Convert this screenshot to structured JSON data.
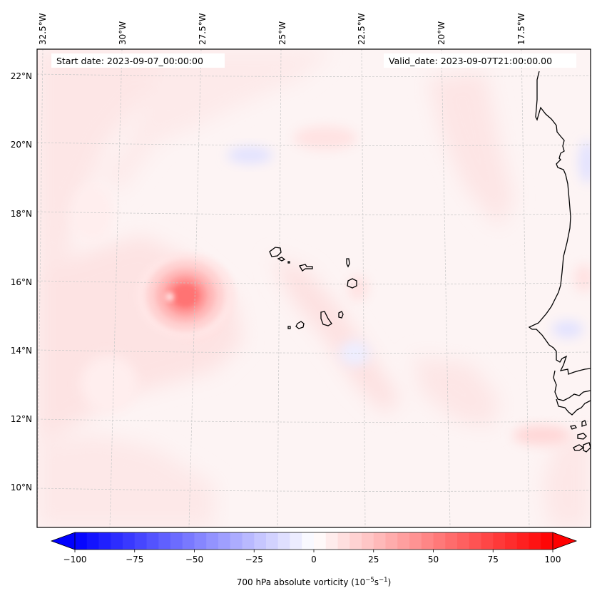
{
  "figure": {
    "start_date_label": "Start date: 2023-09-07_00:00:00",
    "valid_date_label": "Valid_date: 2023-09-07T21:00:00.00"
  },
  "map": {
    "projection": "conic (Lambert)",
    "extent": {
      "lon_min": -32.7,
      "lon_max": -15.8,
      "lat_min": 8.8,
      "lat_max": 22.8
    },
    "lon_ticks": [
      {
        "value": -32.5,
        "label": "32.5°W"
      },
      {
        "value": -30.0,
        "label": "30°W"
      },
      {
        "value": -27.5,
        "label": "27.5°W"
      },
      {
        "value": -25.0,
        "label": "25°W"
      },
      {
        "value": -22.5,
        "label": "22.5°W"
      },
      {
        "value": -20.0,
        "label": "20°W"
      },
      {
        "value": -17.5,
        "label": "17.5°W"
      }
    ],
    "lat_ticks": [
      {
        "value": 22,
        "label": "22°N"
      },
      {
        "value": 20,
        "label": "20°N"
      },
      {
        "value": 18,
        "label": "18°N"
      },
      {
        "value": 16,
        "label": "16°N"
      },
      {
        "value": 14,
        "label": "14°N"
      },
      {
        "value": 12,
        "label": "12°N"
      },
      {
        "value": 10,
        "label": "10°N"
      }
    ],
    "features": [
      {
        "name": "vorticity-maximum",
        "lon": -28.3,
        "lat": 15.8,
        "value_approx": 60
      },
      {
        "name": "cape-verde-islands",
        "lon": -24.0,
        "lat": 15.9
      },
      {
        "name": "west-africa-coastline",
        "lon": -16.5,
        "lat": 14.7
      }
    ]
  },
  "chart_data": {
    "type": "heatmap",
    "title": "",
    "variable": "700 hPa absolute vorticity",
    "units": "10^-5 s^-1",
    "colormap": "bwr",
    "vmin": -100,
    "vmax": 100,
    "levels_step": 5,
    "extend": "both",
    "colorbar": {
      "orientation": "horizontal",
      "placement": "bottom",
      "ticks": [
        -100,
        -75,
        -50,
        -25,
        0,
        25,
        50,
        75,
        100
      ],
      "tick_labels": [
        "−100",
        "−75",
        "−50",
        "−25",
        "0",
        "25",
        "50",
        "75",
        "100"
      ],
      "label_main": "700 hPa absolute vorticity (10",
      "label_exp1": "−5",
      "label_mid": "s",
      "label_exp2": "−1",
      "label_end": ")"
    },
    "blobs": [
      {
        "lon": -28.3,
        "lat": 15.8,
        "value": 60,
        "note": "primary vortex core"
      },
      {
        "lon": -28.2,
        "lat": 15.9,
        "value": 35
      },
      {
        "lon": -28.0,
        "lat": 15.5,
        "value": 20
      },
      {
        "lon": -27.9,
        "lat": 15.2,
        "value": 12
      },
      {
        "lon": -23.9,
        "lat": 20.2,
        "value": 12
      },
      {
        "lon": -26.2,
        "lat": 19.7,
        "value": -12
      },
      {
        "lon": -17.3,
        "lat": 11.5,
        "value": 14
      },
      {
        "lon": -16.5,
        "lat": 14.6,
        "value": -10
      },
      {
        "lon": -16.0,
        "lat": 16.1,
        "value": 10
      },
      {
        "lon": -15.9,
        "lat": 19.5,
        "value": -8
      },
      {
        "lon": -23.0,
        "lat": 13.9,
        "value": -6
      },
      {
        "lon": -22.9,
        "lat": 15.8,
        "value": 8
      },
      {
        "lon": -31.0,
        "lat": 18.0,
        "value": 6
      },
      {
        "lon": -30.5,
        "lat": 13.0,
        "value": 5
      }
    ],
    "background_value": 4
  }
}
